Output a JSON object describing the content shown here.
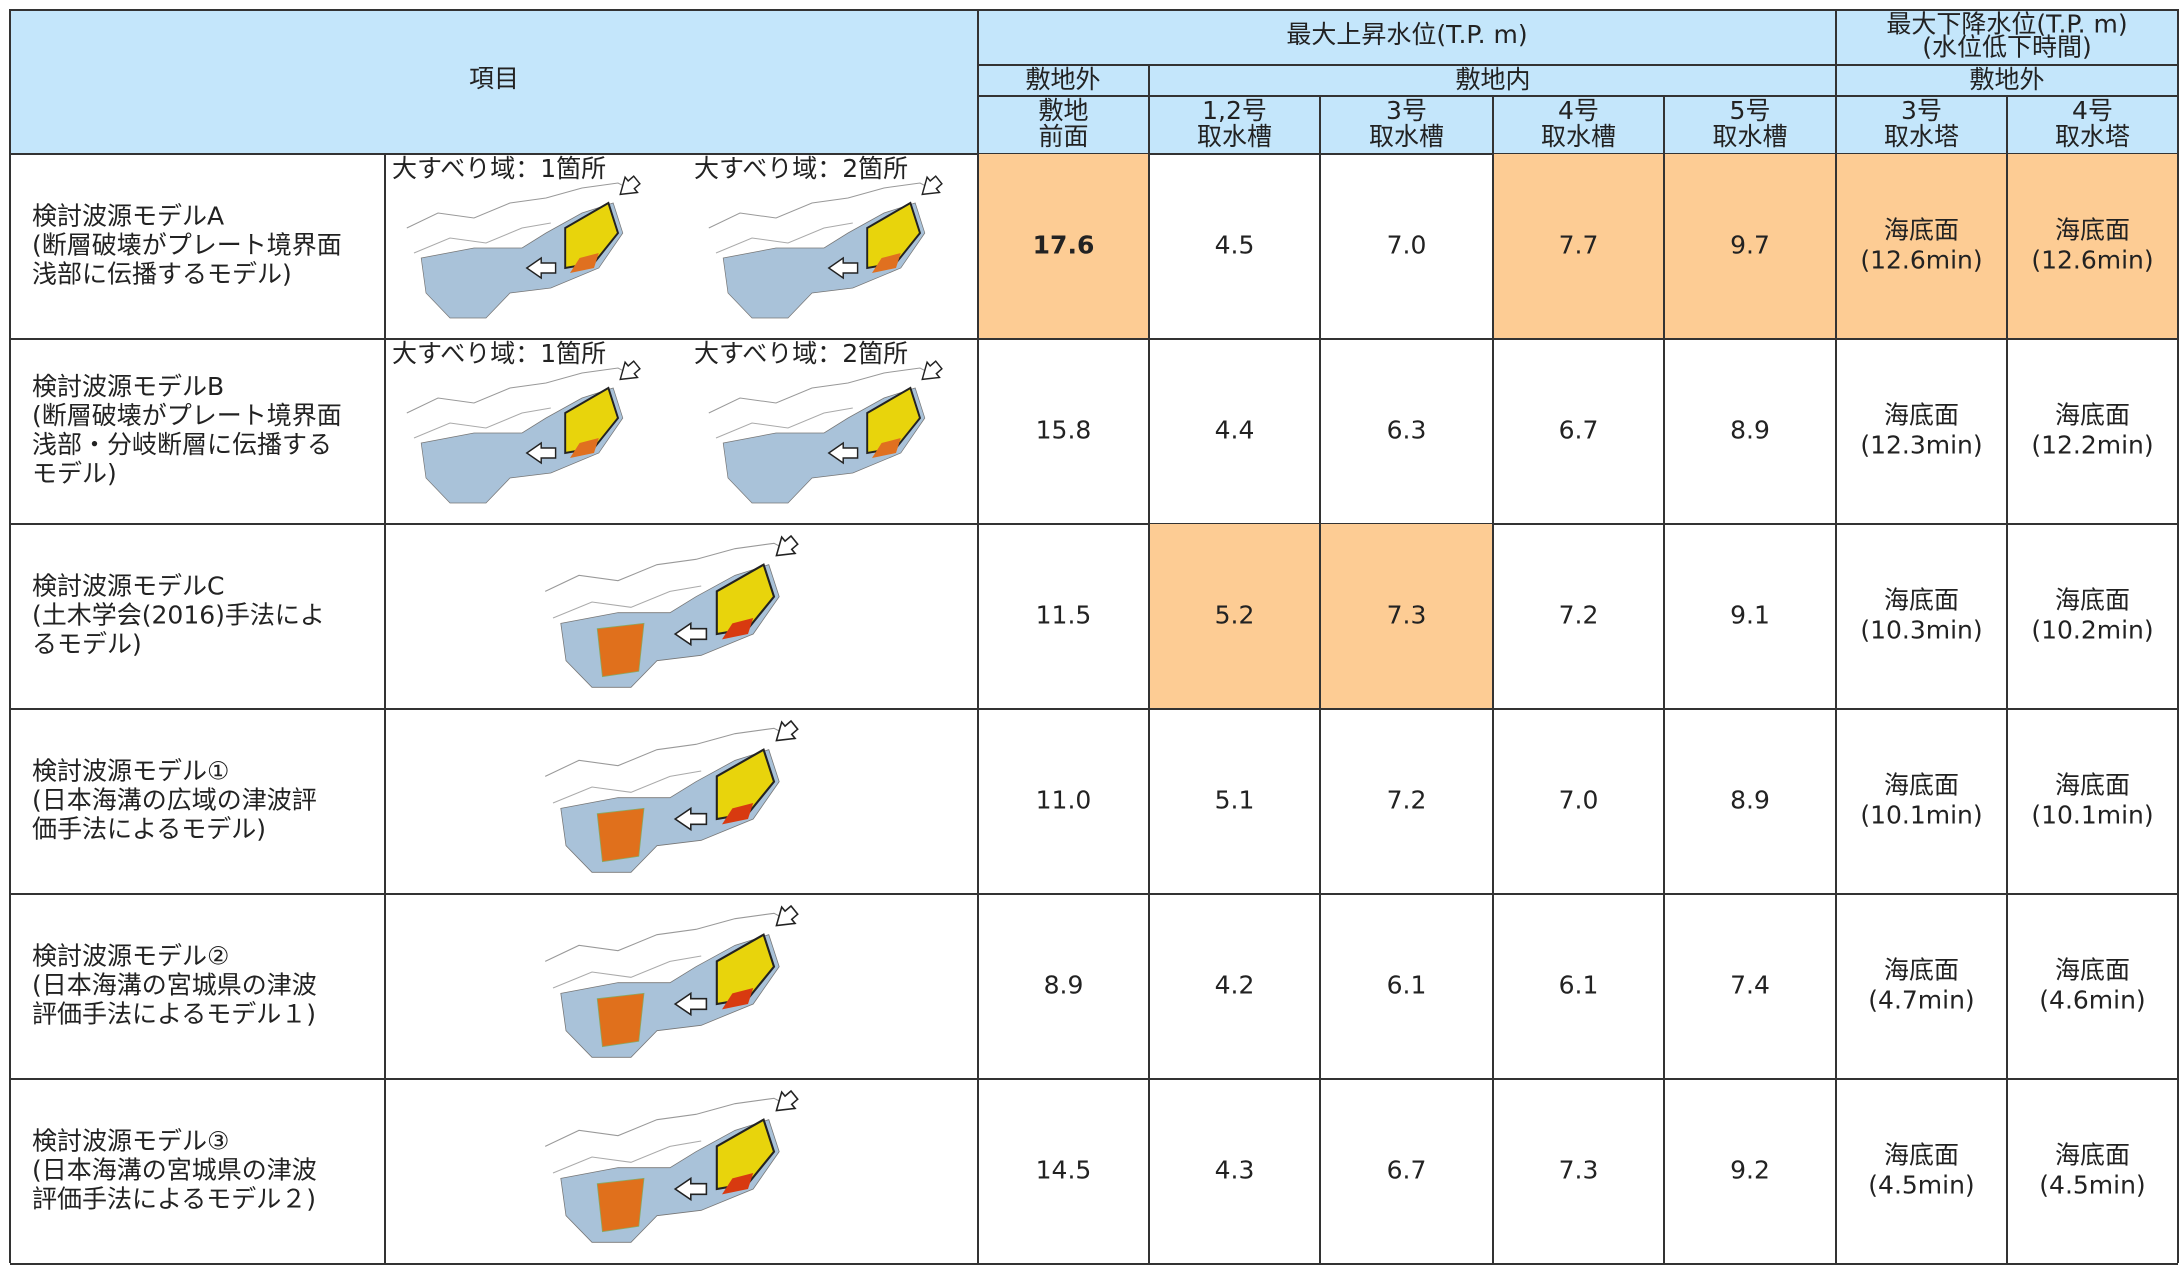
{
  "header": {
    "item": "項目",
    "max_rise": "最大上昇水位(T.P. m)",
    "max_fall": [
      "最大下降水位(T.P. m)",
      "(水位低下時間)"
    ],
    "group_off_site": "敷地外",
    "group_on_site": "敷地内",
    "group_off_site_2": "敷地外",
    "columns": [
      [
        "敷地",
        "前面"
      ],
      [
        "1,2号",
        "取水槽"
      ],
      [
        "3号",
        "取水槽"
      ],
      [
        "4号",
        "取水槽"
      ],
      [
        "5号",
        "取水槽"
      ],
      [
        "3号",
        "取水塔"
      ],
      [
        "4号",
        "取水塔"
      ]
    ]
  },
  "rows": [
    {
      "name": [
        "検討波源モデルA",
        "(断層破壊がプレート境界面",
        "浅部に伝播するモデル)"
      ],
      "map_labels": [
        "大すべり域：1箇所",
        "大すべり域：2箇所"
      ],
      "values": [
        "17.6",
        "4.5",
        "7.0",
        "7.7",
        "9.7",
        [
          "海底面",
          "(12.6min)"
        ],
        [
          "海底面",
          "(12.6min)"
        ]
      ],
      "highlight": [
        0,
        3,
        4,
        5,
        6
      ],
      "bold": [
        0
      ]
    },
    {
      "name": [
        "検討波源モデルB",
        "(断層破壊がプレート境界面",
        "浅部・分岐断層に伝播する",
        "モデル)"
      ],
      "map_labels": [
        "大すべり域：1箇所",
        "大すべり域：2箇所"
      ],
      "values": [
        "15.8",
        "4.4",
        "6.3",
        "6.7",
        "8.9",
        [
          "海底面",
          "(12.3min)"
        ],
        [
          "海底面",
          "(12.2min)"
        ]
      ],
      "highlight": [],
      "bold": []
    },
    {
      "name": [
        "検討波源モデルC",
        "(土木学会(2016)手法によ",
        "るモデル)"
      ],
      "values": [
        "11.5",
        "5.2",
        "7.3",
        "7.2",
        "9.1",
        [
          "海底面",
          "(10.3min)"
        ],
        [
          "海底面",
          "(10.2min)"
        ]
      ],
      "highlight": [
        1,
        2
      ],
      "bold": []
    },
    {
      "name": [
        "検討波源モデル①",
        "(日本海溝の広域の津波評",
        "価手法によるモデル)"
      ],
      "values": [
        "11.0",
        "5.1",
        "7.2",
        "7.0",
        "8.9",
        [
          "海底面",
          "(10.1min)"
        ],
        [
          "海底面",
          "(10.1min)"
        ]
      ],
      "highlight": [],
      "bold": []
    },
    {
      "name": [
        "検討波源モデル②",
        "(日本海溝の宮城県の津波",
        "評価手法によるモデル１)"
      ],
      "values": [
        "8.9",
        "4.2",
        "6.1",
        "6.1",
        "7.4",
        [
          "海底面",
          "(4.7min)"
        ],
        [
          "海底面",
          "(4.6min)"
        ]
      ],
      "highlight": [],
      "bold": []
    },
    {
      "name": [
        "検討波源モデル③",
        "(日本海溝の宮城県の津波",
        "評価手法によるモデル２)"
      ],
      "values": [
        "14.5",
        "4.3",
        "6.7",
        "7.3",
        "9.2",
        [
          "海底面",
          "(4.5min)"
        ],
        [
          "海底面",
          "(4.5min)"
        ]
      ],
      "highlight": [],
      "bold": []
    }
  ]
}
